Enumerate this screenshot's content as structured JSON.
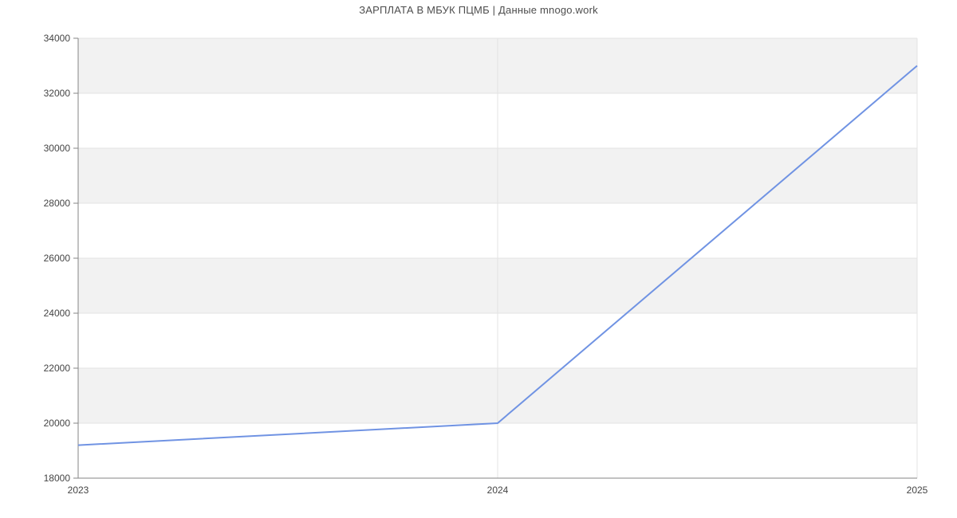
{
  "chart_data": {
    "type": "line",
    "title": "ЗАРПЛАТА В МБУК ПЦМБ | Данные mnogo.work",
    "categories": [
      "2023",
      "2024",
      "2025"
    ],
    "values": [
      19200,
      20000,
      33000
    ],
    "xlabel": "",
    "ylabel": "",
    "ylim": [
      18000,
      34000
    ],
    "y_ticks": [
      18000,
      20000,
      22000,
      24000,
      26000,
      28000,
      30000,
      32000,
      34000
    ],
    "grid": true,
    "legend": "none",
    "band_style": "alternating horizontal bands, gray topmost",
    "colors": {
      "line": "#7093e3",
      "band": "#f2f2f2",
      "gridline": "#e3e3e3",
      "axis": "#858585",
      "tick_label": "#444444",
      "title": "#4d4d4d",
      "background": "#ffffff"
    }
  }
}
